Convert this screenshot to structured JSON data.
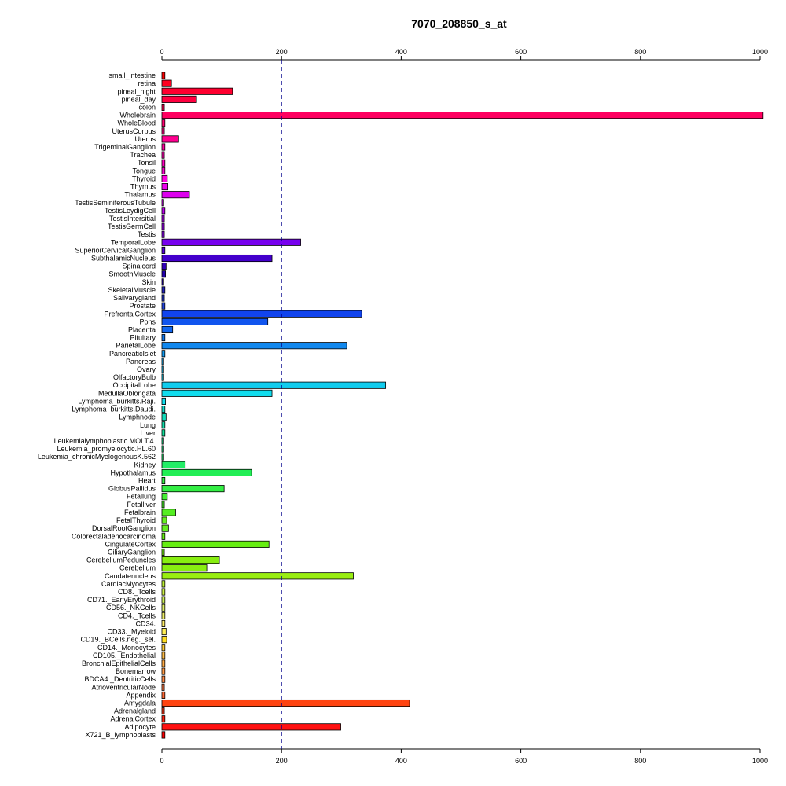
{
  "chart_data": {
    "type": "bar",
    "orientation": "horizontal",
    "title": "7070_208850_s_at",
    "xlabel": "",
    "ylabel": "",
    "xlim": [
      0,
      1000
    ],
    "ticks": [
      0,
      200,
      400,
      600,
      800,
      1000
    ],
    "tick_labels": [
      "0",
      "200",
      "400",
      "600",
      "800",
      "1000"
    ],
    "reference_line": 200,
    "grid": false,
    "legend": "none",
    "categories": [
      "small_intestine",
      "retina",
      "pineal_night",
      "pineal_day",
      "colon",
      "Wholebrain",
      "WholeBlood",
      "UterusCorpus",
      "Uterus",
      "TrigeminalGanglion",
      "Trachea",
      "Tonsil",
      "Tongue",
      "Thyroid",
      "Thymus",
      "Thalamus",
      "TestisSeminiferousTubule",
      "TestisLeydigCell",
      "TestisIntersitial",
      "TestisGermCell",
      "Testis",
      "TemporalLobe",
      "SuperiorCervicalGanglion",
      "SubthalamicNucleus",
      "Spinalcord",
      "SmoothMuscle",
      "Skin",
      "SkeletalMuscle",
      "Salivarygland",
      "Prostate",
      "PrefrontalCortex",
      "Pons",
      "Placenta",
      "Pituitary",
      "ParietalLobe",
      "PancreaticIslet",
      "Pancreas",
      "Ovary",
      "OlfactoryBulb",
      "OccipitalLobe",
      "MedullaOblongata",
      "Lymphoma_burkitts.Raji.",
      "Lymphoma_burkitts.Daudi.",
      "Lymphnode",
      "Lung",
      "Liver",
      "Leukemialymphoblastic.MOLT.4.",
      "Leukemia_promyelocytic.HL.60",
      "Leukemia_chronicMyelogenousK.562",
      "Kidney",
      "Hypothalamus",
      "Heart",
      "GlobusPallidus",
      "Fetallung",
      "Fetalliver",
      "Fetalbrain",
      "FetalThyroid",
      "DorsalRootGanglion",
      "Colorectaladenocarcinoma",
      "CingulateCortex",
      "CiliaryGanglion",
      "CerebellumPeduncles",
      "Cerebellum",
      "Caudatenucleus",
      "CardiacMyocytes",
      "CD8._Tcells",
      "CD71._EarlyErythroid",
      "CD56._NKCells",
      "CD4._Tcells",
      "CD34.",
      "CD33._Myeloid",
      "CD19._BCells.neg._sel.",
      "CD14._Monocytes",
      "CD105._Endothelial",
      "BronchialEpithelialCells",
      "Bonemarrow",
      "BDCA4._DentriticCells",
      "AtrioventricularNode",
      "Appendix",
      "Amygdala",
      "Adrenalgland",
      "AdrenalCortex",
      "Adipocyte",
      "X721_B_lymphoblasts"
    ],
    "values": [
      5,
      16,
      118,
      58,
      4,
      1005,
      5,
      4,
      28,
      5,
      4,
      5,
      5,
      9,
      10,
      46,
      3,
      5,
      4,
      4,
      4,
      232,
      5,
      184,
      7,
      6,
      3,
      5,
      4,
      5,
      334,
      177,
      18,
      5,
      309,
      5,
      3,
      3,
      3,
      374,
      184,
      6,
      5,
      7,
      5,
      5,
      3,
      3,
      3,
      39,
      150,
      5,
      104,
      9,
      4,
      23,
      8,
      11,
      5,
      179,
      4,
      96,
      75,
      320,
      5,
      5,
      5,
      5,
      5,
      5,
      7,
      8,
      5,
      5,
      5,
      5,
      5,
      4,
      5,
      414,
      4,
      5,
      299,
      5
    ],
    "colors": [
      "#ff0000",
      "#ff0020",
      "#ff0030",
      "#ff0040",
      "#ff0050",
      "#ff0060",
      "#ff0070",
      "#ff0080",
      "#ff0090",
      "#ff00a0",
      "#ff00b0",
      "#ff00c0",
      "#ff00d0",
      "#ff00e0",
      "#ee00ee",
      "#dd00ee",
      "#cc00ee",
      "#bb00ee",
      "#aa00ee",
      "#9900ee",
      "#8800ee",
      "#7700ee",
      "#5500dd",
      "#4400cc",
      "#3300bb",
      "#2200aa",
      "#2200aa",
      "#2222bb",
      "#2233cc",
      "#2244dd",
      "#1144ee",
      "#1155ee",
      "#1166ee",
      "#1177ee",
      "#1188ee",
      "#1199ee",
      "#11aaee",
      "#11bbee",
      "#11ccee",
      "#11ccee",
      "#11ddee",
      "#11ddee",
      "#11ddcc",
      "#11ddbb",
      "#11ddaa",
      "#11dd99",
      "#11dd88",
      "#11dd77",
      "#11ee66",
      "#22ee66",
      "#22ee55",
      "#33ee44",
      "#33ee44",
      "#44ee33",
      "#44ee22",
      "#55ee22",
      "#66ee22",
      "#66ee22",
      "#66ee11",
      "#66ee11",
      "#77ee11",
      "#88ee11",
      "#88ee11",
      "#99ee11",
      "#bbee33",
      "#ccee44",
      "#ccee55",
      "#ddee66",
      "#eeee66",
      "#ffee66",
      "#ffee55",
      "#ffdd22",
      "#ffcc33",
      "#ffbb44",
      "#ffaa44",
      "#ff9944",
      "#ff8844",
      "#ff7744",
      "#ff6633",
      "#ff4411",
      "#ff3311",
      "#ff2211",
      "#ff1111",
      "#ff0000"
    ]
  }
}
